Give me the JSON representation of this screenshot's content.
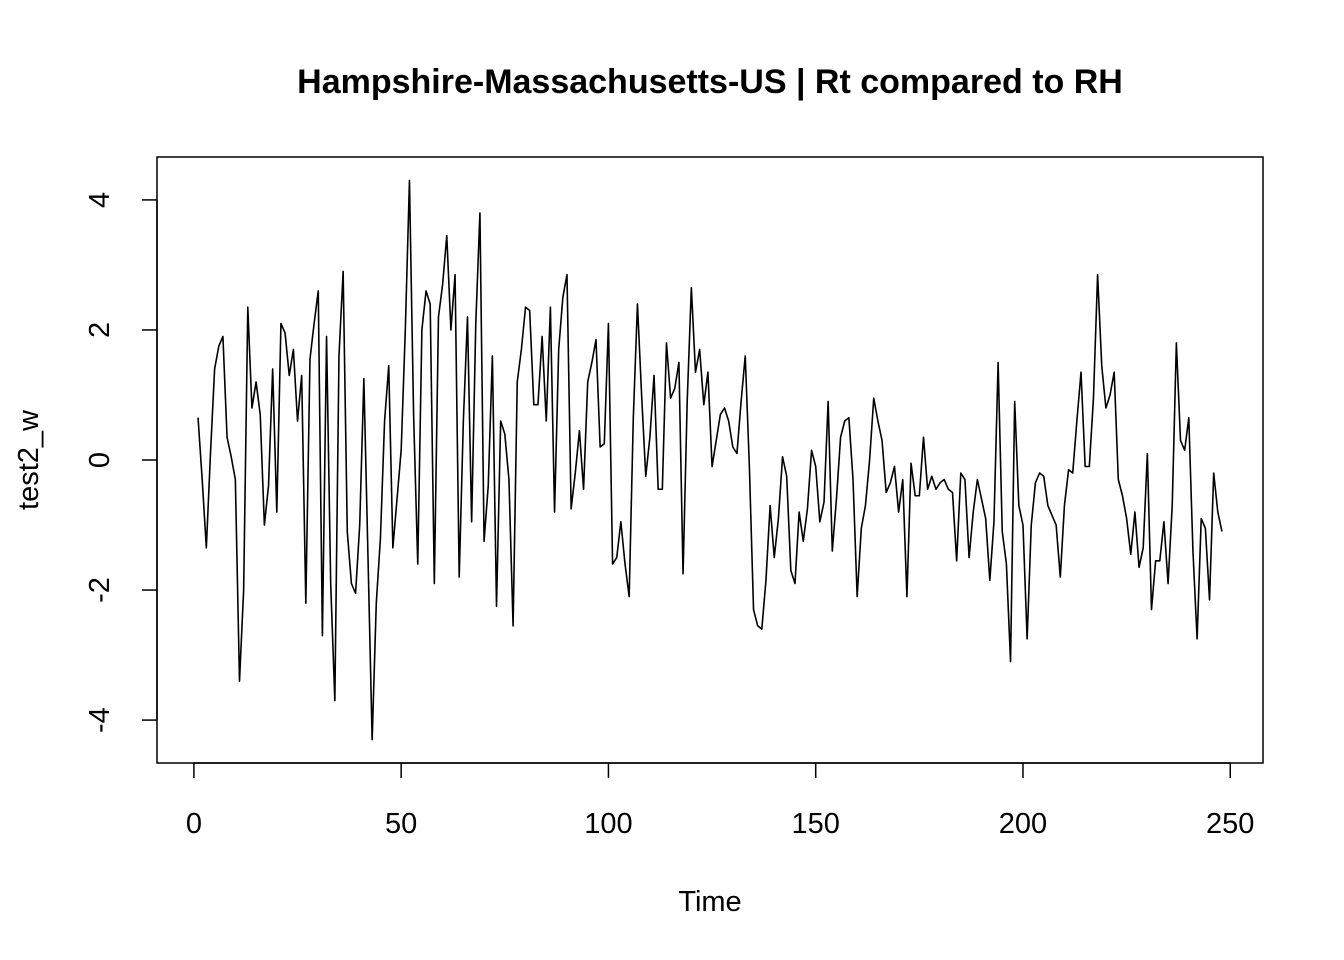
{
  "chart_data": {
    "type": "line",
    "title": "Hampshire-Massachusetts-US | Rt compared to RH",
    "xlabel": "Time",
    "ylabel": "test2_w",
    "xlim": [
      -8.9,
      257.9
    ],
    "ylim": [
      -4.66,
      4.66
    ],
    "xticks": [
      0,
      50,
      100,
      150,
      200,
      250
    ],
    "yticks": [
      -4,
      -2,
      0,
      2,
      4
    ],
    "xtick_labels": [
      "0",
      "50",
      "100",
      "150",
      "200",
      "250"
    ],
    "ytick_labels": [
      "-4",
      "-2",
      "0",
      "2",
      "4"
    ],
    "grid": false,
    "line_color": "#000000",
    "series": [
      {
        "x": [
          1,
          2,
          3,
          4,
          5,
          6,
          7,
          8,
          9,
          10,
          11,
          12,
          13,
          14,
          15,
          16,
          17,
          18,
          19,
          20,
          21,
          22,
          23,
          24,
          25,
          26,
          27,
          28,
          29,
          30,
          31,
          32,
          33,
          34,
          35,
          36,
          37,
          38,
          39,
          40,
          41,
          42,
          43,
          44,
          45,
          46,
          47,
          48,
          49,
          50,
          51,
          52,
          53,
          54,
          55,
          56,
          57,
          58,
          59,
          60,
          61,
          62,
          63,
          64,
          65,
          66,
          67,
          68,
          69,
          70,
          71,
          72,
          73,
          74,
          75,
          76,
          77,
          78,
          79,
          80,
          81,
          82,
          83,
          84,
          85,
          86,
          87,
          88,
          89,
          90,
          91,
          92,
          93,
          94,
          95,
          96,
          97,
          98,
          99,
          100,
          101,
          102,
          103,
          104,
          105,
          106,
          107,
          108,
          109,
          110,
          111,
          112,
          113,
          114,
          115,
          116,
          117,
          118,
          119,
          120,
          121,
          122,
          123,
          124,
          125,
          126,
          127,
          128,
          129,
          130,
          131,
          132,
          133,
          134,
          135,
          136,
          137,
          138,
          139,
          140,
          141,
          142,
          143,
          144,
          145,
          146,
          147,
          148,
          149,
          150,
          151,
          152,
          153,
          154,
          155,
          156,
          157,
          158,
          159,
          160,
          161,
          162,
          163,
          164,
          165,
          166,
          167,
          168,
          169,
          170,
          171,
          172,
          173,
          174,
          175,
          176,
          177,
          178,
          179,
          180,
          181,
          182,
          183,
          184,
          185,
          186,
          187,
          188,
          189,
          190,
          191,
          192,
          193,
          194,
          195,
          196,
          197,
          198,
          199,
          200,
          201,
          202,
          203,
          204,
          205,
          206,
          207,
          208,
          209,
          210,
          211,
          212,
          213,
          214,
          215,
          216,
          217,
          218,
          219,
          220,
          221,
          222,
          223,
          224,
          225,
          226,
          227,
          228,
          229,
          230,
          231,
          232,
          233,
          234,
          235,
          236,
          237,
          238,
          239,
          240,
          241,
          242,
          243,
          244,
          245,
          246,
          247,
          248
        ],
        "values": [
          0.65,
          -0.3,
          -1.35,
          0.1,
          1.4,
          1.75,
          1.9,
          0.35,
          0.05,
          -0.3,
          -3.4,
          -2.0,
          2.35,
          0.8,
          1.2,
          0.7,
          -1.0,
          -0.4,
          1.4,
          -0.8,
          2.1,
          1.95,
          1.3,
          1.7,
          0.6,
          1.3,
          -2.2,
          1.55,
          2.1,
          2.6,
          -2.7,
          1.9,
          -1.9,
          -3.7,
          1.6,
          2.9,
          -1.1,
          -1.9,
          -2.05,
          -1.0,
          1.25,
          -1.5,
          -4.3,
          -2.2,
          -1.2,
          0.6,
          1.45,
          -1.35,
          -0.6,
          0.15,
          2.0,
          4.3,
          0.7,
          -1.6,
          2.0,
          2.6,
          2.4,
          -1.9,
          2.2,
          2.7,
          3.45,
          2.0,
          2.85,
          -1.8,
          0.6,
          2.2,
          -0.95,
          2.1,
          3.8,
          -1.25,
          -0.4,
          1.6,
          -2.25,
          0.6,
          0.4,
          -0.3,
          -2.55,
          1.2,
          1.7,
          2.35,
          2.3,
          0.85,
          0.85,
          1.9,
          0.6,
          2.35,
          -0.8,
          1.7,
          2.5,
          2.85,
          -0.75,
          -0.2,
          0.45,
          -0.45,
          1.2,
          1.5,
          1.85,
          0.2,
          0.25,
          2.1,
          -1.6,
          -1.5,
          -0.95,
          -1.6,
          -2.1,
          0.65,
          2.4,
          1.0,
          -0.25,
          0.35,
          1.3,
          -0.45,
          -0.45,
          1.8,
          0.95,
          1.1,
          1.5,
          -1.75,
          0.9,
          2.65,
          1.35,
          1.7,
          0.85,
          1.35,
          -0.1,
          0.3,
          0.7,
          0.8,
          0.6,
          0.2,
          0.1,
          0.9,
          1.6,
          -0.1,
          -2.3,
          -2.55,
          -2.6,
          -1.85,
          -0.7,
          -1.5,
          -0.9,
          0.05,
          -0.25,
          -1.7,
          -1.9,
          -0.8,
          -1.25,
          -0.75,
          0.15,
          -0.1,
          -0.95,
          -0.65,
          0.9,
          -1.4,
          -0.6,
          0.35,
          0.6,
          0.65,
          -0.3,
          -2.1,
          -1.05,
          -0.7,
          0.0,
          0.95,
          0.6,
          0.3,
          -0.5,
          -0.35,
          -0.1,
          -0.8,
          -0.3,
          -2.1,
          -0.05,
          -0.55,
          -0.55,
          0.35,
          -0.45,
          -0.25,
          -0.45,
          -0.35,
          -0.3,
          -0.45,
          -0.5,
          -1.55,
          -0.2,
          -0.3,
          -1.5,
          -0.8,
          -0.3,
          -0.6,
          -0.9,
          -1.85,
          -0.95,
          1.5,
          -1.1,
          -1.6,
          -3.1,
          0.9,
          -0.7,
          -1.0,
          -2.75,
          -1.0,
          -0.35,
          -0.2,
          -0.25,
          -0.7,
          -0.85,
          -1.0,
          -1.8,
          -0.7,
          -0.15,
          -0.2,
          0.6,
          1.35,
          -0.1,
          -0.1,
          0.95,
          2.85,
          1.45,
          0.8,
          1.0,
          1.35,
          -0.3,
          -0.55,
          -0.9,
          -1.45,
          -0.8,
          -1.65,
          -1.35,
          0.1,
          -2.3,
          -1.55,
          -1.55,
          -0.95,
          -1.9,
          -0.7,
          1.8,
          0.3,
          0.15,
          0.65,
          -1.4,
          -2.75,
          -0.9,
          -1.05,
          -2.15,
          -0.2,
          -0.8,
          -1.1
        ]
      }
    ]
  }
}
